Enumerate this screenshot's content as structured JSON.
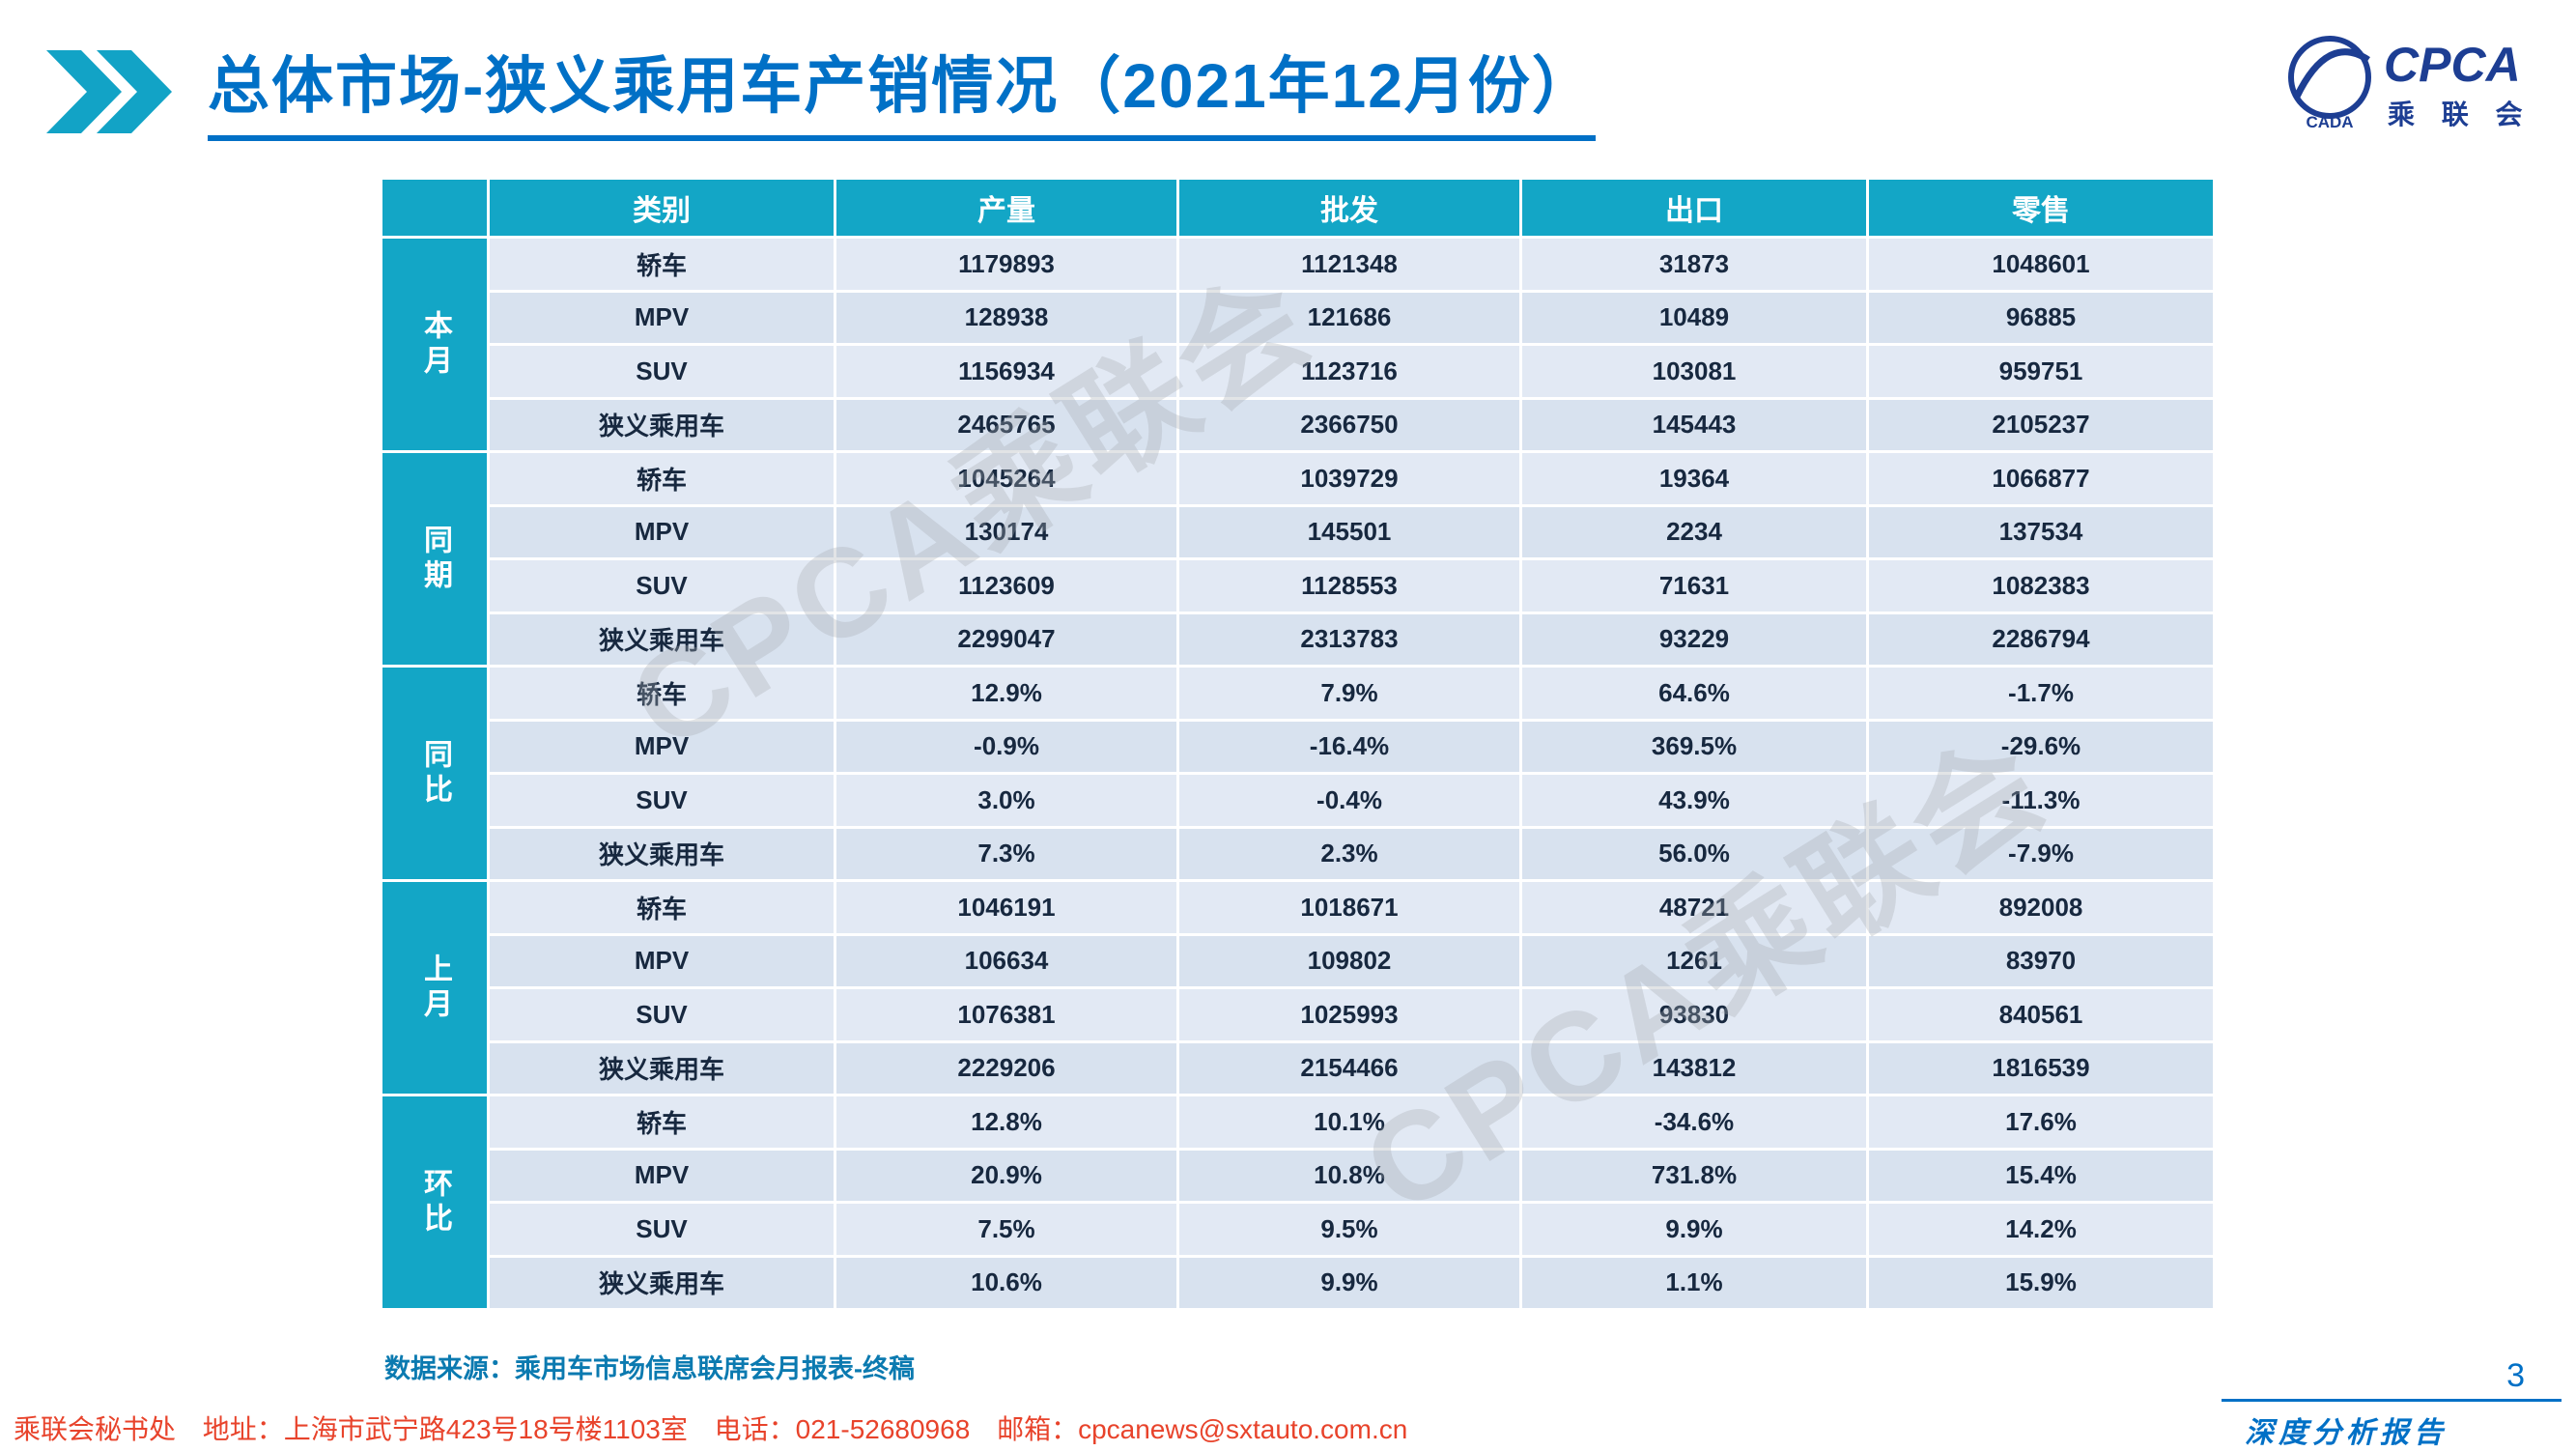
{
  "colors": {
    "accent_teal": "#13a6c6",
    "title_blue": "#0070c6",
    "footer_red": "#e8432b",
    "row_light": "#e2e9f4",
    "row_dark": "#d8e2ef",
    "data_text": "#17283f",
    "logo_blue": "#1d3e93"
  },
  "header": {
    "title": "总体市场-狭义乘用车产销情况（2021年12月份）",
    "logo": {
      "brand": "CPCA",
      "brand_sub": "乘 联 会",
      "emblem_text": "CADA"
    }
  },
  "watermarks": [
    "CPCA乘联会",
    "CPCA乘联会"
  ],
  "chart_data": {
    "type": "table",
    "columns": [
      "类别",
      "产量",
      "批发",
      "出口",
      "零售"
    ],
    "row_groups": [
      {
        "label": "本月",
        "rows": [
          {
            "category": "轿车",
            "values": [
              "1179893",
              "1121348",
              "31873",
              "1048601"
            ]
          },
          {
            "category": "MPV",
            "values": [
              "128938",
              "121686",
              "10489",
              "96885"
            ]
          },
          {
            "category": "SUV",
            "values": [
              "1156934",
              "1123716",
              "103081",
              "959751"
            ]
          },
          {
            "category": "狭义乘用车",
            "values": [
              "2465765",
              "2366750",
              "145443",
              "2105237"
            ]
          }
        ]
      },
      {
        "label": "同期",
        "rows": [
          {
            "category": "轿车",
            "values": [
              "1045264",
              "1039729",
              "19364",
              "1066877"
            ]
          },
          {
            "category": "MPV",
            "values": [
              "130174",
              "145501",
              "2234",
              "137534"
            ]
          },
          {
            "category": "SUV",
            "values": [
              "1123609",
              "1128553",
              "71631",
              "1082383"
            ]
          },
          {
            "category": "狭义乘用车",
            "values": [
              "2299047",
              "2313783",
              "93229",
              "2286794"
            ]
          }
        ]
      },
      {
        "label": "同比",
        "rows": [
          {
            "category": "轿车",
            "values": [
              "12.9%",
              "7.9%",
              "64.6%",
              "-1.7%"
            ]
          },
          {
            "category": "MPV",
            "values": [
              "-0.9%",
              "-16.4%",
              "369.5%",
              "-29.6%"
            ]
          },
          {
            "category": "SUV",
            "values": [
              "3.0%",
              "-0.4%",
              "43.9%",
              "-11.3%"
            ]
          },
          {
            "category": "狭义乘用车",
            "values": [
              "7.3%",
              "2.3%",
              "56.0%",
              "-7.9%"
            ]
          }
        ]
      },
      {
        "label": "上月",
        "rows": [
          {
            "category": "轿车",
            "values": [
              "1046191",
              "1018671",
              "48721",
              "892008"
            ]
          },
          {
            "category": "MPV",
            "values": [
              "106634",
              "109802",
              "1261",
              "83970"
            ]
          },
          {
            "category": "SUV",
            "values": [
              "1076381",
              "1025993",
              "93830",
              "840561"
            ]
          },
          {
            "category": "狭义乘用车",
            "values": [
              "2229206",
              "2154466",
              "143812",
              "1816539"
            ]
          }
        ]
      },
      {
        "label": "环比",
        "rows": [
          {
            "category": "轿车",
            "values": [
              "12.8%",
              "10.1%",
              "-34.6%",
              "17.6%"
            ]
          },
          {
            "category": "MPV",
            "values": [
              "20.9%",
              "10.8%",
              "731.8%",
              "15.4%"
            ]
          },
          {
            "category": "SUV",
            "values": [
              "7.5%",
              "9.5%",
              "9.9%",
              "14.2%"
            ]
          },
          {
            "category": "狭义乘用车",
            "values": [
              "10.6%",
              "9.9%",
              "1.1%",
              "15.9%"
            ]
          }
        ]
      }
    ]
  },
  "footer": {
    "source_note": "数据来源：乘用车市场信息联席会月报表-终稿",
    "org": "乘联会秘书处",
    "address": "地址：上海市武宁路423号18号楼1103室",
    "phone": "电话：021-52680968",
    "email": "邮箱：cpcanews@sxtauto.com.cn",
    "report_label": "深度分析报告",
    "page_number": "3"
  }
}
